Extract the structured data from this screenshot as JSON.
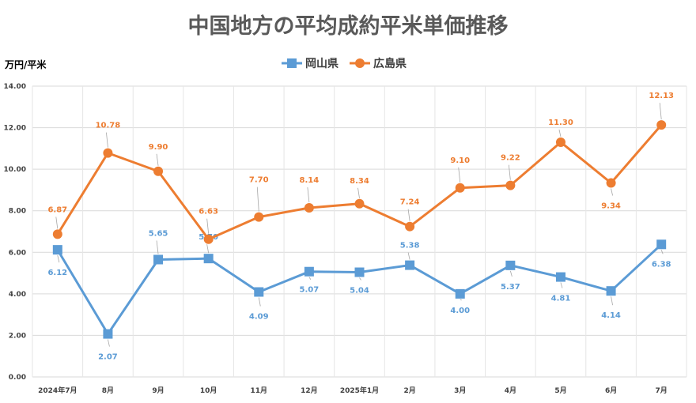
{
  "chart_data": {
    "type": "line",
    "title": "中国地方の平均成約平米単価推移",
    "ylabel": "万円/平米",
    "xlabel": "",
    "categories": [
      "2024年7月",
      "8月",
      "9月",
      "10月",
      "11月",
      "12月",
      "2025年1月",
      "2月",
      "3月",
      "4月",
      "5月",
      "6月",
      "7月"
    ],
    "ylim": [
      0,
      14
    ],
    "yticks": [
      "0.00",
      "2.00",
      "4.00",
      "6.00",
      "8.00",
      "10.00",
      "12.00",
      "14.00"
    ],
    "grid": true,
    "legend_position": "top-center",
    "series": [
      {
        "name": "岡山県",
        "color": "#5B9BD5",
        "marker": "square",
        "values": [
          6.12,
          2.07,
          5.65,
          5.7,
          4.09,
          5.07,
          5.04,
          5.38,
          4.0,
          5.37,
          4.81,
          4.14,
          6.38
        ],
        "labels": [
          "6.12",
          "2.07",
          "5.65",
          "5.70",
          "4.09",
          "5.07",
          "5.04",
          "5.38",
          "4.00",
          "5.37",
          "4.81",
          "4.14",
          "6.38"
        ]
      },
      {
        "name": "広島県",
        "color": "#ED7D31",
        "marker": "circle",
        "values": [
          6.87,
          10.78,
          9.9,
          6.63,
          7.7,
          8.14,
          8.34,
          7.24,
          9.1,
          9.22,
          11.3,
          9.34,
          12.13
        ],
        "labels": [
          "6.87",
          "10.78",
          "9.90",
          "6.63",
          "7.70",
          "8.14",
          "8.34",
          "7.24",
          "9.10",
          "9.22",
          "11.30",
          "9.34",
          "12.13"
        ]
      }
    ]
  }
}
